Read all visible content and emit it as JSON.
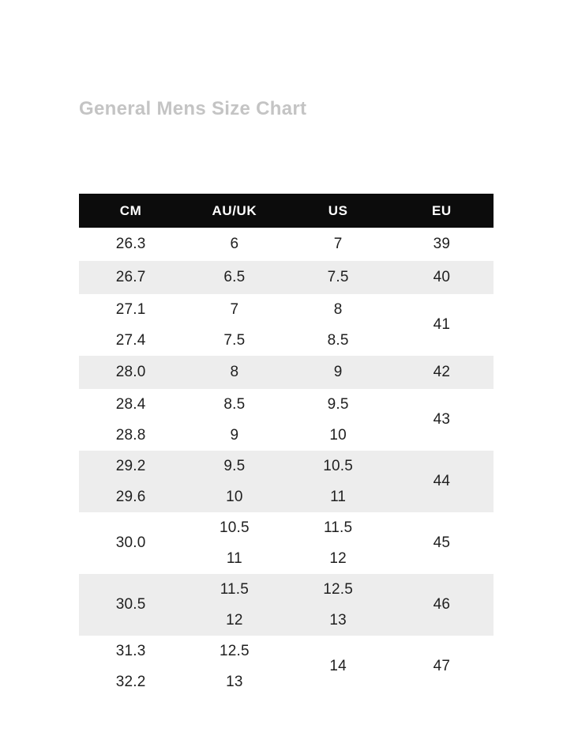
{
  "page": {
    "title": "General Mens Size Chart"
  },
  "colors": {
    "page_bg": "#ffffff",
    "header_bg": "#0c0c0c",
    "header_text": "#ffffff",
    "shaded_row_bg": "#ededed",
    "body_text": "#1f1f1f",
    "title_text": "#c4c4c4"
  },
  "size_chart": {
    "headers": [
      "CM",
      "AU/UK",
      "US",
      "EU"
    ],
    "rows": [
      {
        "shaded": false,
        "tall": false,
        "cells": [
          [
            "26.3"
          ],
          [
            "6"
          ],
          [
            "7"
          ],
          [
            "39"
          ]
        ]
      },
      {
        "shaded": true,
        "tall": false,
        "cells": [
          [
            "26.7"
          ],
          [
            "6.5"
          ],
          [
            "7.5"
          ],
          [
            "40"
          ]
        ]
      },
      {
        "shaded": false,
        "tall": true,
        "cells": [
          [
            "27.1",
            "27.4"
          ],
          [
            "7",
            "7.5"
          ],
          [
            "8",
            "8.5"
          ],
          [
            "41"
          ]
        ]
      },
      {
        "shaded": true,
        "tall": false,
        "cells": [
          [
            "28.0"
          ],
          [
            "8"
          ],
          [
            "9"
          ],
          [
            "42"
          ]
        ]
      },
      {
        "shaded": false,
        "tall": true,
        "cells": [
          [
            "28.4",
            "28.8"
          ],
          [
            "8.5",
            "9"
          ],
          [
            "9.5",
            "10"
          ],
          [
            "43"
          ]
        ]
      },
      {
        "shaded": true,
        "tall": true,
        "cells": [
          [
            "29.2",
            "29.6"
          ],
          [
            "9.5",
            "10"
          ],
          [
            "10.5",
            "11"
          ],
          [
            "44"
          ]
        ]
      },
      {
        "shaded": false,
        "tall": true,
        "cells": [
          [
            "30.0"
          ],
          [
            "10.5",
            "11"
          ],
          [
            "11.5",
            "12"
          ],
          [
            "45"
          ]
        ]
      },
      {
        "shaded": true,
        "tall": true,
        "cells": [
          [
            "30.5"
          ],
          [
            "11.5",
            "12"
          ],
          [
            "12.5",
            "13"
          ],
          [
            "46"
          ]
        ]
      },
      {
        "shaded": false,
        "tall": true,
        "cells": [
          [
            "31.3",
            "32.2"
          ],
          [
            "12.5",
            "13"
          ],
          [
            "14"
          ],
          [
            "47"
          ]
        ]
      }
    ]
  },
  "chart_data": {
    "type": "table",
    "title": "General Mens Size Chart",
    "columns": [
      "CM",
      "AU/UK",
      "US",
      "EU"
    ],
    "rows": [
      [
        "26.3",
        "6",
        "7",
        "39"
      ],
      [
        "26.7",
        "6.5",
        "7.5",
        "40"
      ],
      [
        "27.1 / 27.4",
        "7 / 7.5",
        "8 / 8.5",
        "41"
      ],
      [
        "28.0",
        "8",
        "9",
        "42"
      ],
      [
        "28.4 / 28.8",
        "8.5 / 9",
        "9.5 / 10",
        "43"
      ],
      [
        "29.2 / 29.6",
        "9.5 / 10",
        "10.5 / 11",
        "44"
      ],
      [
        "30.0",
        "10.5 / 11",
        "11.5 / 12",
        "45"
      ],
      [
        "30.5",
        "11.5 / 12",
        "12.5 / 13",
        "46"
      ],
      [
        "31.3 / 32.2",
        "12.5 / 13",
        "14",
        "47"
      ]
    ],
    "layout": {
      "header_style": "black-band",
      "row_shading": "alternating",
      "grid": false,
      "legend": "none"
    }
  }
}
